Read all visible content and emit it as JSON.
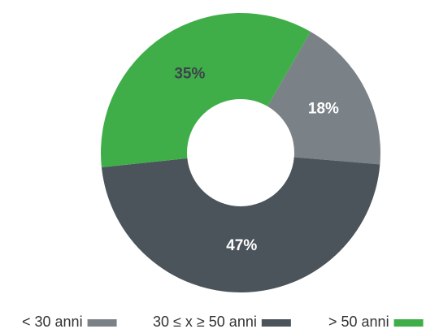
{
  "chart_data": {
    "type": "pie",
    "donut": true,
    "categories": [
      "< 30 anni",
      "30 ≤ x ≥ 50 anni",
      "> 50 anni"
    ],
    "values": [
      18,
      47,
      35
    ],
    "value_labels": [
      "18%",
      "47%",
      "35%"
    ],
    "colors": [
      "#7a8288",
      "#4b535b",
      "#3fae49"
    ],
    "label_colors": [
      "#ffffff",
      "#ffffff",
      "#3d434a"
    ],
    "legend": "bottom"
  }
}
